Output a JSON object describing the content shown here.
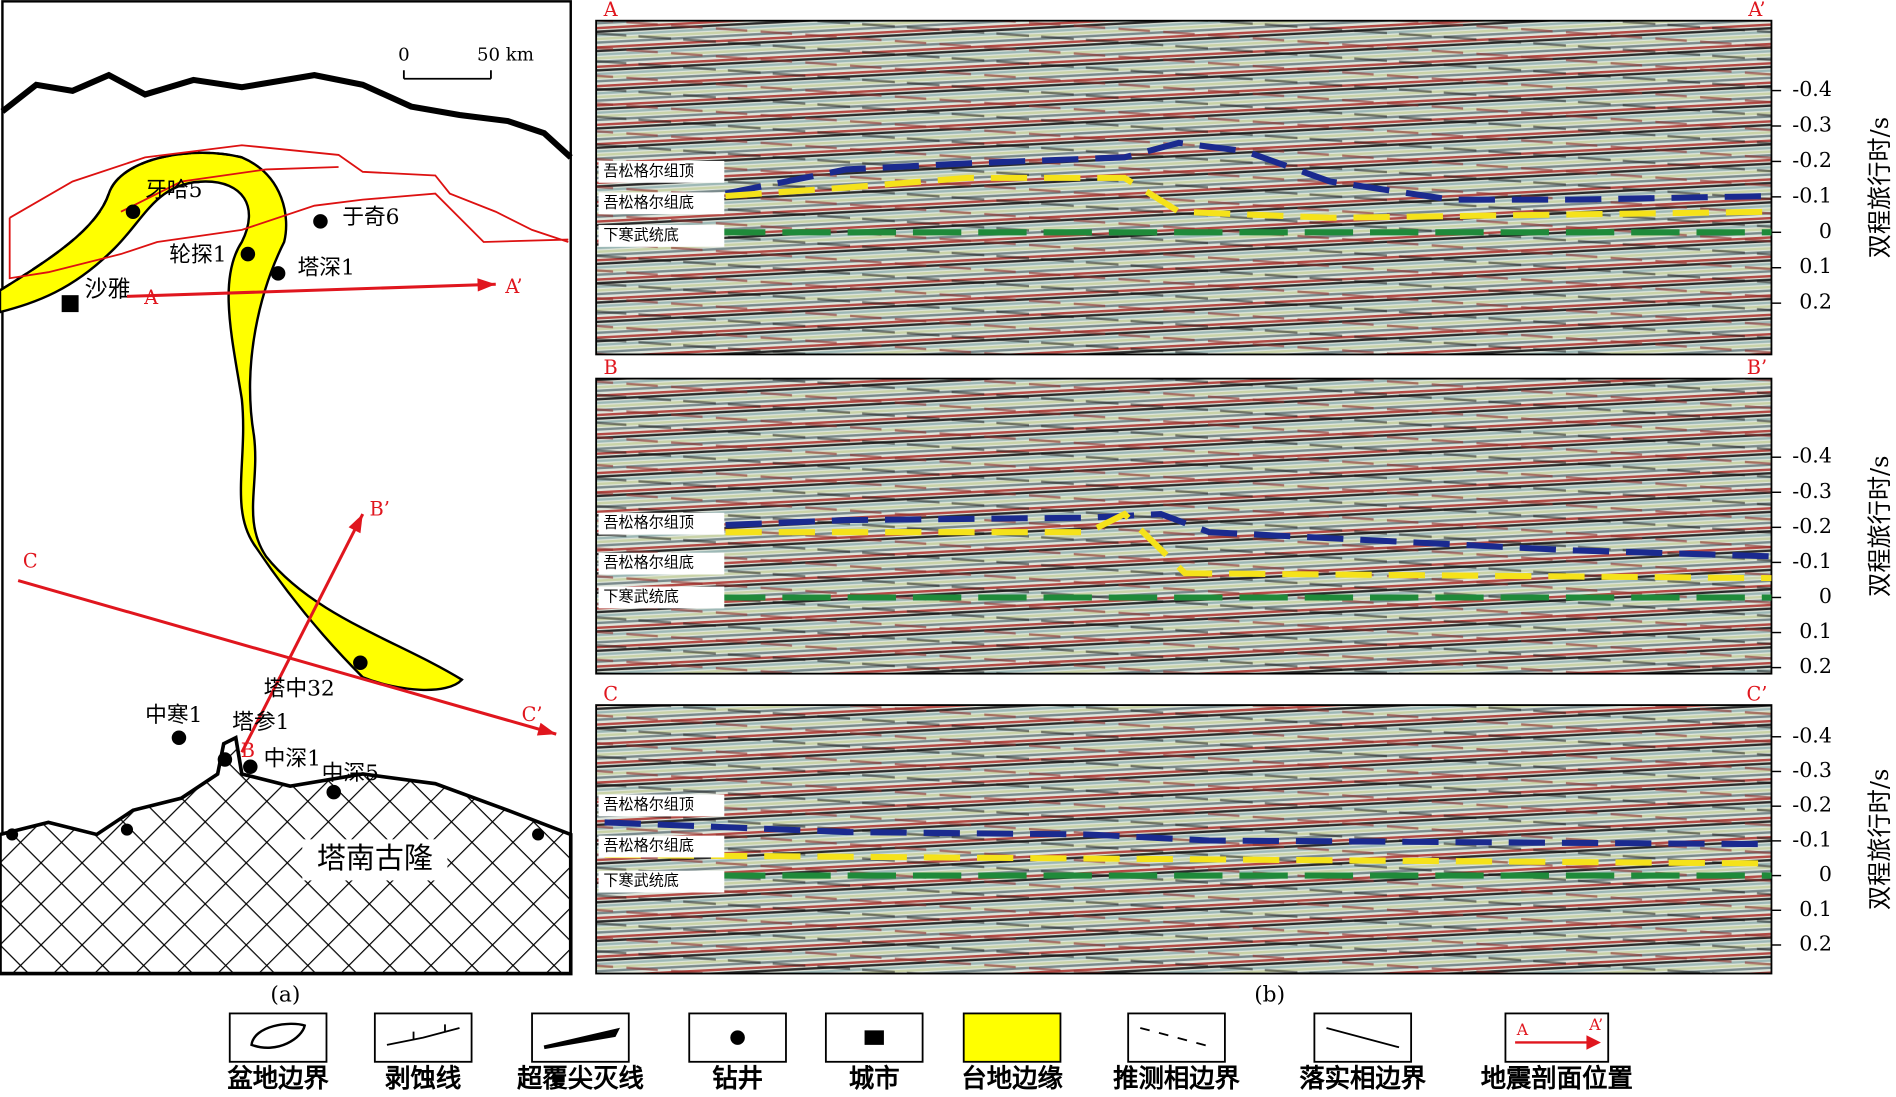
{
  "map": {
    "scale": {
      "start": "0",
      "end": "50 km"
    },
    "wells": [
      "牙哈5",
      "于奇6",
      "轮探1",
      "塔深1",
      "塔中32",
      "中寒1",
      "塔参1",
      "中深1",
      "中深5"
    ],
    "city": "沙雅",
    "uplift": "塔南古隆",
    "profile_ends": [
      "A",
      "A’",
      "B",
      "B’",
      "C",
      "C’"
    ],
    "caption": "(a)"
  },
  "sections": {
    "panels": [
      {
        "start": "A",
        "end": "A’"
      },
      {
        "start": "B",
        "end": "B’"
      },
      {
        "start": "C",
        "end": "C’"
      }
    ],
    "horizons": [
      "吾松格尔组顶",
      "吾松格尔组底",
      "下寒武统底"
    ],
    "axis_title": "双程旅行时/s",
    "ticks": [
      "-0.4",
      "-0.3",
      "-0.2",
      "-0.1",
      "0",
      "0.1",
      "0.2"
    ],
    "caption": "(b)"
  },
  "legend": {
    "items": [
      "盆地边界",
      "剥蚀线",
      "超覆尖灭线",
      "钻井",
      "城市",
      "台地边缘",
      "推测相边界",
      "落实相边界",
      "地震剖面位置"
    ]
  }
}
